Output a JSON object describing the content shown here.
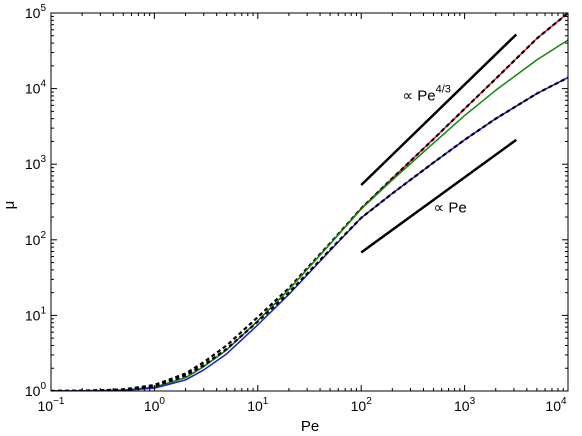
{
  "chart_data": {
    "type": "line",
    "xlabel": "Pe",
    "ylabel": "μ",
    "xscale": "log",
    "yscale": "log",
    "xlim": [
      0.1,
      10000
    ],
    "ylim": [
      1,
      100000
    ],
    "grid": false,
    "x_ticks": [
      {
        "base": "10",
        "exp": "−1",
        "value": 0.1
      },
      {
        "base": "10",
        "exp": "0",
        "value": 1
      },
      {
        "base": "10",
        "exp": "1",
        "value": 10
      },
      {
        "base": "10",
        "exp": "2",
        "value": 100
      },
      {
        "base": "10",
        "exp": "3",
        "value": 1000
      },
      {
        "base": "10",
        "exp": "4",
        "value": 10000
      }
    ],
    "y_ticks": [
      {
        "base": "10",
        "exp": "0",
        "value": 1
      },
      {
        "base": "10",
        "exp": "1",
        "value": 10
      },
      {
        "base": "10",
        "exp": "2",
        "value": 100
      },
      {
        "base": "10",
        "exp": "3",
        "value": 1000
      },
      {
        "base": "10",
        "exp": "4",
        "value": 10000
      },
      {
        "base": "10",
        "exp": "5",
        "value": 100000
      }
    ],
    "annotations": [
      {
        "prefix": "∝ Pe",
        "sup": "4/3",
        "x": 250,
        "y": 7000
      },
      {
        "prefix": "∝ Pe",
        "sup": "",
        "x": 500,
        "y": 230
      }
    ],
    "series": [
      {
        "color": "#e8122a",
        "style": "solid",
        "x": [
          0.1,
          0.3,
          0.5,
          1,
          2,
          3,
          5,
          10,
          20,
          50,
          100,
          200,
          500,
          1000,
          2000,
          5000,
          10000
        ],
        "y": [
          1,
          1.01,
          1.03,
          1.12,
          1.5,
          2.1,
          3.5,
          8.5,
          22,
          88,
          260,
          650,
          2150,
          5400,
          13500,
          46000,
          100000
        ]
      },
      {
        "color": "#000000",
        "style": "dashed",
        "x": [
          0.1,
          0.3,
          0.5,
          1,
          2,
          3,
          5,
          10,
          20,
          50,
          100,
          200,
          500,
          1000,
          2000,
          5000,
          10000
        ],
        "y": [
          1,
          1.02,
          1.05,
          1.2,
          1.7,
          2.4,
          4.0,
          9.5,
          23,
          90,
          260,
          650,
          2150,
          5400,
          13500,
          46000,
          100000
        ]
      },
      {
        "color": "#118811",
        "style": "solid",
        "x": [
          0.1,
          0.3,
          0.5,
          1,
          2,
          3,
          5,
          10,
          20,
          50,
          100,
          200,
          500,
          1000,
          2000,
          5000,
          10000
        ],
        "y": [
          1,
          1.01,
          1.03,
          1.12,
          1.5,
          2.1,
          3.5,
          8.5,
          22,
          88,
          255,
          620,
          1900,
          4400,
          9500,
          24000,
          44000
        ]
      },
      {
        "color": "#1c1cc8",
        "style": "solid",
        "x": [
          0.1,
          0.3,
          0.5,
          1,
          2,
          3,
          5,
          10,
          20,
          50,
          100,
          200,
          500,
          1000,
          2000,
          5000,
          10000
        ],
        "y": [
          1,
          1.01,
          1.02,
          1.09,
          1.4,
          1.9,
          3.1,
          7.5,
          19,
          72,
          195,
          410,
          1050,
          2100,
          4000,
          8600,
          14000
        ]
      },
      {
        "color": "#000000",
        "style": "dashed",
        "x": [
          0.1,
          0.3,
          0.5,
          1,
          2,
          3,
          5,
          10,
          20,
          50,
          100,
          200,
          500,
          1000,
          2000,
          5000,
          10000
        ],
        "y": [
          1,
          1.02,
          1.04,
          1.15,
          1.6,
          2.2,
          3.6,
          8.3,
          20,
          74,
          195,
          410,
          1050,
          2100,
          4000,
          8600,
          14000
        ]
      },
      {
        "color": "#000000",
        "style": "solid",
        "width": 2.5,
        "x": [
          100,
          3160
        ],
        "y": [
          530,
          52000
        ]
      },
      {
        "color": "#000000",
        "style": "solid",
        "width": 2.5,
        "x": [
          100,
          3160
        ],
        "y": [
          68,
          2100
        ]
      }
    ]
  }
}
